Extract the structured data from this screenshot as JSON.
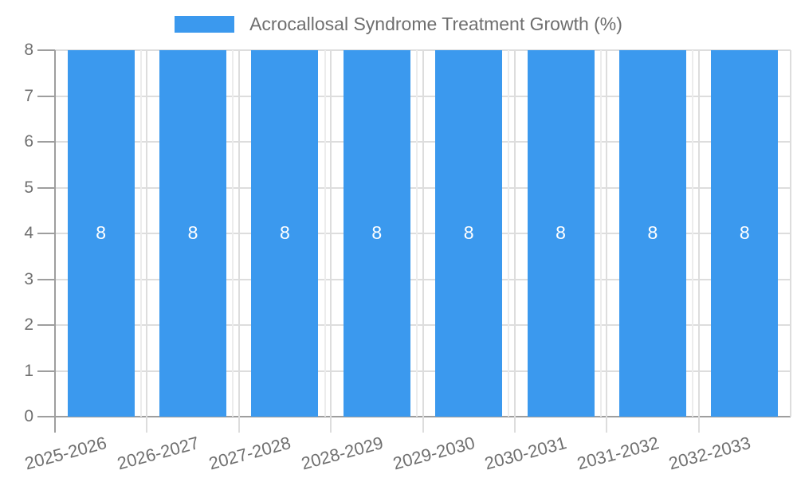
{
  "legend": {
    "label": "Acrocallosal Syndrome Treatment Growth (%)"
  },
  "chart_data": {
    "type": "bar",
    "title": "Acrocallosal Syndrome Treatment Growth (%)",
    "categories": [
      "2025-2026",
      "2026-2027",
      "2027-2028",
      "2028-2029",
      "2029-2030",
      "2030-2031",
      "2031-2032",
      "2032-2033"
    ],
    "values": [
      8,
      8,
      8,
      8,
      8,
      8,
      8,
      8
    ],
    "bar_value_labels": [
      "8",
      "8",
      "8",
      "8",
      "8",
      "8",
      "8",
      "8"
    ],
    "xlabel": "",
    "ylabel": "",
    "ylim": [
      0,
      8
    ],
    "yticks": [
      0,
      1,
      2,
      3,
      4,
      5,
      6,
      7,
      8
    ],
    "grid": true,
    "legend_position": "top",
    "colors": {
      "bar": "#3B99EE",
      "axis": "#9E9E9E",
      "grid": "#DDDDDD",
      "grid_light": "#ECECEC",
      "tick_text": "#707070",
      "legend_text": "#6E6E6E",
      "value_label": "#FFFFFF",
      "background": "#FFFFFF"
    }
  }
}
